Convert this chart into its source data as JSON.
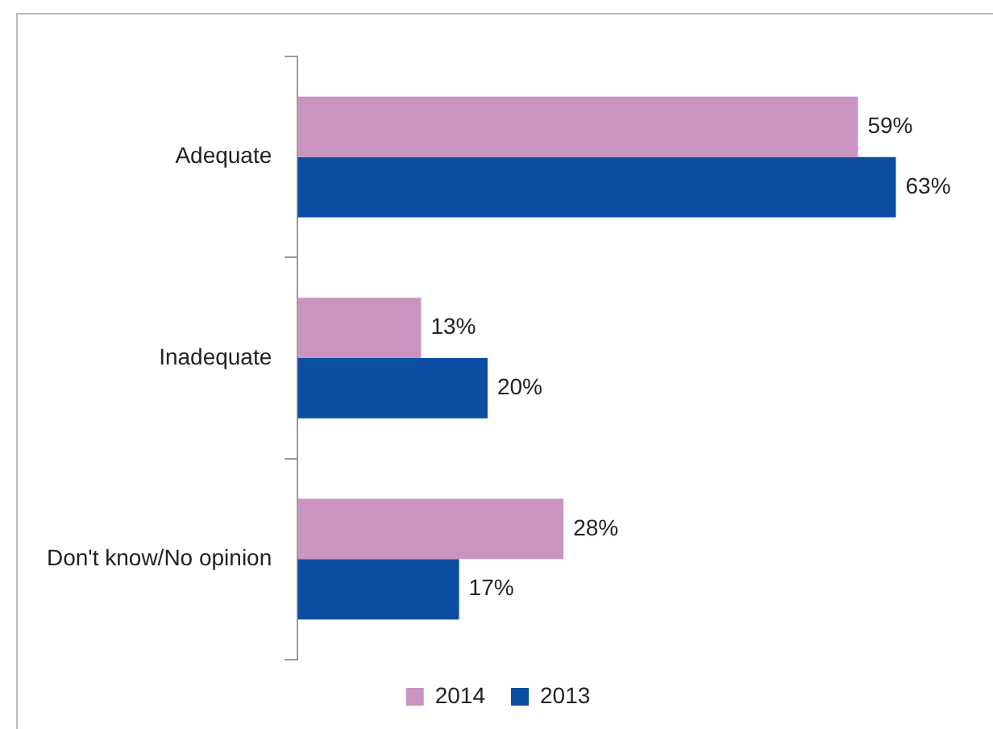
{
  "chart_data": {
    "type": "bar",
    "orientation": "horizontal",
    "categories": [
      "Adequate",
      "Inadequate",
      "Don't know/No opinion"
    ],
    "series": [
      {
        "name": "2014",
        "color": "#c994c0",
        "values": [
          59,
          13,
          28
        ],
        "value_labels": [
          "59%",
          "13%",
          "28%"
        ]
      },
      {
        "name": "2013",
        "color": "#0b4ea2",
        "values": [
          63,
          20,
          17
        ],
        "value_labels": [
          "63%",
          "20%",
          "17%"
        ]
      }
    ],
    "tick_labels": "y",
    "legend": "bottom"
  }
}
